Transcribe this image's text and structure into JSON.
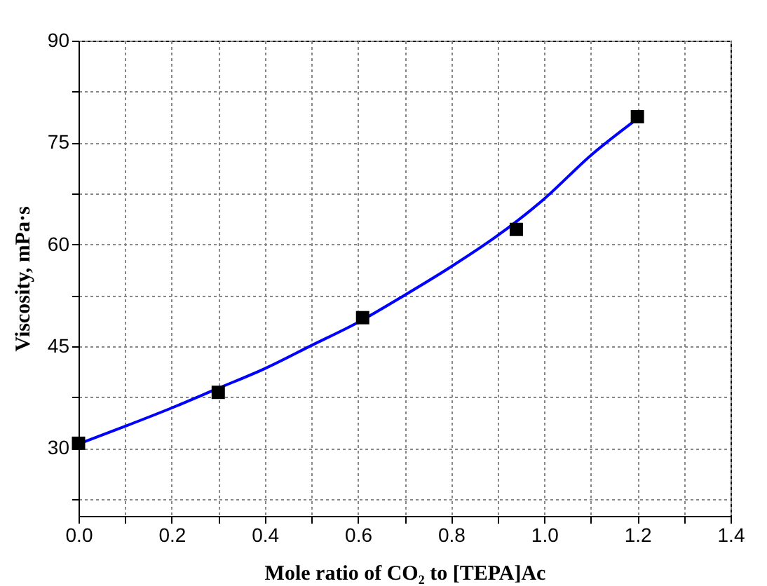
{
  "chart_data": {
    "type": "scatter",
    "xlabel": "Mole ratio of CO₂ to [TEPA]Ac",
    "ylabel": "Viscosity, mPa·s",
    "xlim": [
      0,
      1.4
    ],
    "ylim": [
      20,
      90
    ],
    "xticks": [
      {
        "value": 0,
        "label": "0.0"
      },
      {
        "value": 0.1,
        "label": null
      },
      0.2,
      {
        "value": 0.3,
        "label": null
      },
      0.4,
      {
        "value": 0.5,
        "label": null
      },
      0.6,
      {
        "value": 0.7,
        "label": null
      },
      0.8,
      {
        "value": 0.9,
        "label": null
      },
      {
        "value": 1,
        "label": "1.0"
      },
      {
        "value": 1.1,
        "label": null
      },
      1.2,
      {
        "value": 1.3,
        "label": null
      },
      1.4
    ],
    "yticks": [
      {
        "value": 22.5,
        "label": null
      },
      30,
      {
        "value": 37.5,
        "label": null
      },
      45,
      {
        "value": 52.5,
        "label": null
      },
      60,
      {
        "value": 67.5,
        "label": null
      },
      75,
      {
        "value": 82.5,
        "label": null
      },
      90
    ],
    "grid": true,
    "series": [
      {
        "type": "line",
        "color": "#0000ff",
        "marker": "none",
        "x": [
          0,
          0.1,
          0.2,
          0.3,
          0.4,
          0.5,
          0.6,
          0.7,
          0.8,
          0.9,
          1.0,
          1.1,
          1.2
        ],
        "values": [
          30.6,
          33.2,
          35.9,
          38.8,
          41.7,
          45.1,
          48.5,
          52.5,
          56.7,
          61.3,
          66.7,
          73.1,
          78.5
        ]
      },
      {
        "color": "#000000",
        "marker": "square",
        "x": [
          0,
          0.3,
          0.61,
          0.94,
          1.2
        ],
        "values": [
          30.7,
          38.2,
          49.2,
          62.2,
          78.8
        ]
      }
    ]
  }
}
